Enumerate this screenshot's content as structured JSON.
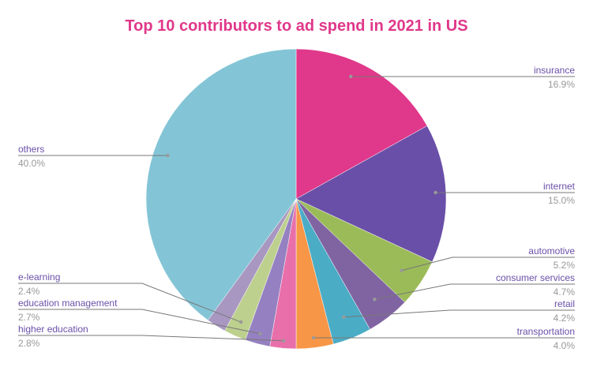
{
  "chart_data": {
    "type": "pie",
    "title": "Top 10 contributors to ad spend in 2021 in US",
    "start": "top, clockwise",
    "slices": [
      {
        "label": "insurance",
        "value": 16.9,
        "value_label": "16.9%",
        "color": "#E0388A"
      },
      {
        "label": "internet",
        "value": 15.0,
        "value_label": "15.0%",
        "color": "#6A4FA8"
      },
      {
        "label": "automotive",
        "value": 5.2,
        "value_label": "5.2%",
        "color": "#9BBB59"
      },
      {
        "label": "consumer services",
        "value": 4.7,
        "value_label": "4.7%",
        "color": "#8064A2"
      },
      {
        "label": "retail",
        "value": 4.2,
        "value_label": "4.2%",
        "color": "#4BACC6"
      },
      {
        "label": "transportation",
        "value": 4.0,
        "value_label": "4.0%",
        "color": "#F79646"
      },
      {
        "label": "higher education",
        "value": 2.8,
        "value_label": "2.8%",
        "color": "#E86FAA"
      },
      {
        "label": "education management",
        "value": 2.7,
        "value_label": "2.7%",
        "color": "#9581C1"
      },
      {
        "label": "e-learning",
        "value": 2.4,
        "value_label": "2.4%",
        "color": "#BDD08E"
      },
      {
        "label": "",
        "value": 2.1,
        "value_label": "",
        "color": "#A897C1"
      },
      {
        "label": "others",
        "value": 40.0,
        "value_label": "40.0%",
        "color": "#83C5D6"
      }
    ]
  }
}
